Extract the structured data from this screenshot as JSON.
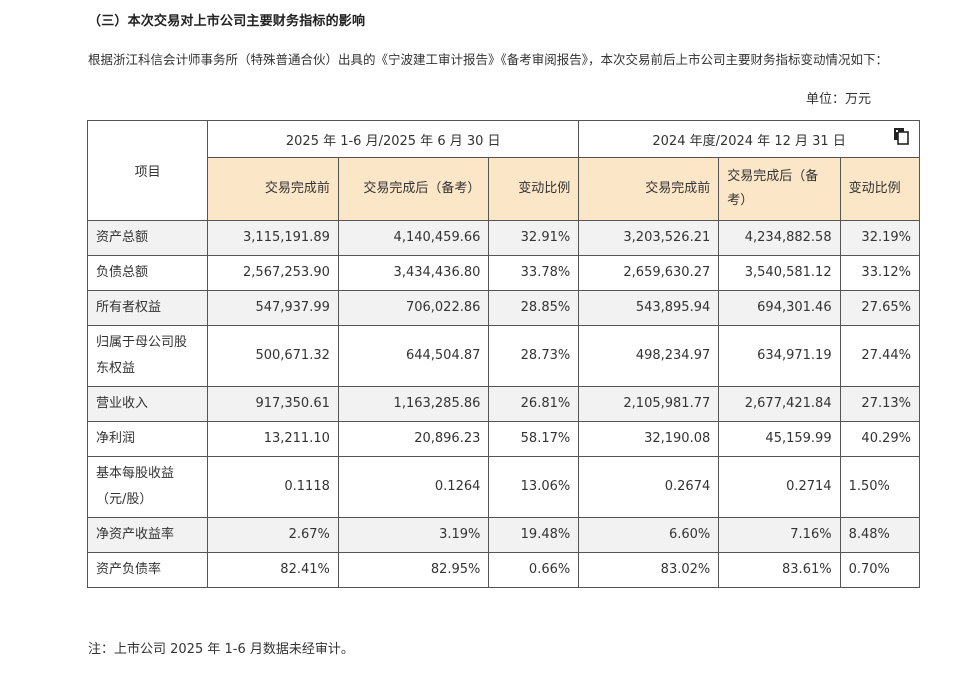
{
  "heading": "（三）本次交易对上市公司主要财务指标的影响",
  "intro": "根据浙江科信会计师事务所（特殊普通合伙）出具的《宁波建工审计报告》《备考审阅报告》，本次交易前后上市公司主要财务指标变动情况如下：",
  "unit": "单位：万元",
  "table": {
    "item_header": "项目",
    "period1": "2025 年 1-6 月/2025 年 6 月 30 日",
    "period2": "2024 年度/2024 年 12 月 31 日",
    "sub_headers": [
      "交易完成前",
      "交易完成后（备考）",
      "变动比例",
      "交易完成前",
      "交易完成后（备考）",
      "变动比例"
    ],
    "copy_icon": "copy-icon",
    "rows": [
      {
        "name": "资产总额",
        "values": [
          "3,115,191.89",
          "4,140,459.66",
          "32.91%",
          "3,203,526.21",
          "4,234,882.58",
          "32.19%"
        ]
      },
      {
        "name": "负债总额",
        "values": [
          "2,567,253.90",
          "3,434,436.80",
          "33.78%",
          "2,659,630.27",
          "3,540,581.12",
          "33.12%"
        ]
      },
      {
        "name": "所有者权益",
        "values": [
          "547,937.99",
          "706,022.86",
          "28.85%",
          "543,895.94",
          "694,301.46",
          "27.65%"
        ]
      },
      {
        "name": "归属于母公司股东权益",
        "values": [
          "500,671.32",
          "644,504.87",
          "28.73%",
          "498,234.97",
          "634,971.19",
          "27.44%"
        ]
      },
      {
        "name": "营业收入",
        "values": [
          "917,350.61",
          "1,163,285.86",
          "26.81%",
          "2,105,981.77",
          "2,677,421.84",
          "27.13%"
        ]
      },
      {
        "name": "净利润",
        "values": [
          "13,211.10",
          "20,896.23",
          "58.17%",
          "32,190.08",
          "45,159.99",
          "40.29%"
        ]
      },
      {
        "name": "基本每股收益（元/股）",
        "values": [
          "0.1118",
          "0.1264",
          "13.06%",
          "0.2674",
          "0.2714",
          "1.50%"
        ]
      },
      {
        "name": "净资产收益率",
        "values": [
          "2.67%",
          "3.19%",
          "19.48%",
          "6.60%",
          "7.16%",
          "8.48%"
        ]
      },
      {
        "name": "资产负债率",
        "values": [
          "82.41%",
          "82.95%",
          "0.66%",
          "83.02%",
          "83.61%",
          "0.70%"
        ]
      }
    ]
  },
  "note": "注：上市公司 2025 年 1-6 月数据未经审计。"
}
